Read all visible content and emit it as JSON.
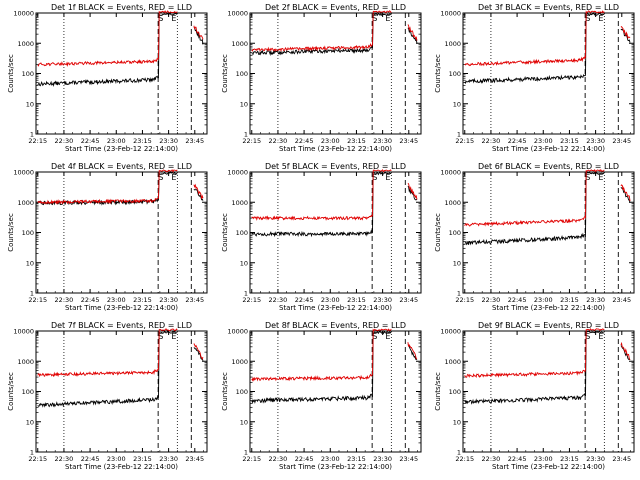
{
  "figure": {
    "title_template": "Det {n}f BLACK = Events, RED = LLD",
    "ylabel": "Counts/sec",
    "xlabel": "Start Time (23-Feb-12 22:14:00)",
    "x_ticks": [
      "22:15",
      "22:30",
      "22:45",
      "23:00",
      "23:15",
      "23:30",
      "23:45"
    ],
    "y_ticks": [
      "1",
      "10",
      "100",
      "1000",
      "10000"
    ],
    "markers": {
      "start": "S",
      "end": "E"
    },
    "colors": {
      "events": "#000000",
      "lld": "#e00000"
    }
  },
  "chart_data": [
    {
      "type": "line",
      "title": "Det 1f BLACK = Events, RED = LLD",
      "detector": "1",
      "events_level": 45,
      "lld_level": 200,
      "events_drift": 0.15,
      "lld_drift": 0.1,
      "ylim": [
        1,
        10000
      ],
      "y_scale": "log",
      "xlim": [
        "22:14",
        "23:52"
      ],
      "xlabel": "Start Time (23-Feb-12 22:14:00)",
      "ylabel": "Counts/sec",
      "series": [
        {
          "name": "BLACK = Events",
          "color": "#000000"
        },
        {
          "name": "RED = LLD",
          "color": "#e00000"
        }
      ]
    },
    {
      "type": "line",
      "title": "Det 2f BLACK = Events, RED = LLD",
      "detector": "2",
      "events_level": 480,
      "lld_level": 600,
      "events_drift": 0.1,
      "lld_drift": 0.1,
      "ylim": [
        1,
        10000
      ],
      "y_scale": "log",
      "xlim": [
        "22:14",
        "23:52"
      ],
      "xlabel": "Start Time (23-Feb-12 22:14:00)",
      "ylabel": "Counts/sec",
      "series": [
        {
          "name": "BLACK = Events",
          "color": "#000000"
        },
        {
          "name": "RED = LLD",
          "color": "#e00000"
        }
      ]
    },
    {
      "type": "line",
      "title": "Det 3f BLACK = Events, RED = LLD",
      "detector": "3",
      "events_level": 55,
      "lld_level": 200,
      "events_drift": 0.15,
      "lld_drift": 0.15,
      "ylim": [
        1,
        10000
      ],
      "y_scale": "log",
      "xlim": [
        "22:14",
        "23:52"
      ],
      "xlabel": "Start Time (23-Feb-12 22:14:00)",
      "ylabel": "Counts/sec",
      "series": [
        {
          "name": "BLACK = Events",
          "color": "#000000"
        },
        {
          "name": "RED = LLD",
          "color": "#e00000"
        }
      ]
    },
    {
      "type": "line",
      "title": "Det 4f BLACK = Events, RED = LLD",
      "detector": "4",
      "events_level": 950,
      "lld_level": 1000,
      "events_drift": 0.05,
      "lld_drift": 0.05,
      "ylim": [
        1,
        10000
      ],
      "y_scale": "log",
      "xlim": [
        "22:14",
        "23:52"
      ],
      "xlabel": "Start Time (23-Feb-12 22:14:00)",
      "ylabel": "Counts/sec",
      "series": [
        {
          "name": "BLACK = Events",
          "color": "#000000"
        },
        {
          "name": "RED = LLD",
          "color": "#e00000"
        }
      ]
    },
    {
      "type": "line",
      "title": "Det 5f BLACK = Events, RED = LLD",
      "detector": "5",
      "events_level": 90,
      "lld_level": 300,
      "events_drift": 0.0,
      "lld_drift": 0.0,
      "ylim": [
        1,
        10000
      ],
      "y_scale": "log",
      "xlim": [
        "22:14",
        "23:52"
      ],
      "xlabel": "Start Time (23-Feb-12 22:14:00)",
      "ylabel": "Counts/sec",
      "series": [
        {
          "name": "BLACK = Events",
          "color": "#000000"
        },
        {
          "name": "RED = LLD",
          "color": "#e00000"
        }
      ]
    },
    {
      "type": "line",
      "title": "Det 6f BLACK = Events, RED = LLD",
      "detector": "6",
      "events_level": 45,
      "lld_level": 180,
      "events_drift": 0.2,
      "lld_drift": 0.15,
      "ylim": [
        1,
        10000
      ],
      "y_scale": "log",
      "xlim": [
        "22:14",
        "23:52"
      ],
      "xlabel": "Start Time (23-Feb-12 22:14:00)",
      "ylabel": "Counts/sec",
      "series": [
        {
          "name": "BLACK = Events",
          "color": "#000000"
        },
        {
          "name": "RED = LLD",
          "color": "#e00000"
        }
      ]
    },
    {
      "type": "line",
      "title": "Det 7f BLACK = Events, RED = LLD",
      "detector": "7",
      "events_level": 35,
      "lld_level": 350,
      "events_drift": 0.2,
      "lld_drift": 0.1,
      "ylim": [
        1,
        10000
      ],
      "y_scale": "log",
      "xlim": [
        "22:14",
        "23:52"
      ],
      "xlabel": "Start Time (23-Feb-12 22:14:00)",
      "ylabel": "Counts/sec",
      "series": [
        {
          "name": "BLACK = Events",
          "color": "#000000"
        },
        {
          "name": "RED = LLD",
          "color": "#e00000"
        }
      ]
    },
    {
      "type": "line",
      "title": "Det 8f BLACK = Events, RED = LLD",
      "detector": "8",
      "events_level": 50,
      "lld_level": 260,
      "events_drift": 0.1,
      "lld_drift": 0.05,
      "ylim": [
        1,
        10000
      ],
      "y_scale": "log",
      "xlim": [
        "22:14",
        "23:52"
      ],
      "xlabel": "Start Time (23-Feb-12 22:14:00)",
      "ylabel": "Counts/sec",
      "series": [
        {
          "name": "BLACK = Events",
          "color": "#000000"
        },
        {
          "name": "RED = LLD",
          "color": "#e00000"
        }
      ]
    },
    {
      "type": "line",
      "title": "Det 9f BLACK = Events, RED = LLD",
      "detector": "9",
      "events_level": 45,
      "lld_level": 330,
      "events_drift": 0.15,
      "lld_drift": 0.1,
      "ylim": [
        1,
        10000
      ],
      "y_scale": "log",
      "xlim": [
        "22:14",
        "23:52"
      ],
      "xlabel": "Start Time (23-Feb-12 22:14:00)",
      "ylabel": "Counts/sec",
      "series": [
        {
          "name": "BLACK = Events",
          "color": "#000000"
        },
        {
          "name": "RED = LLD",
          "color": "#e00000"
        }
      ]
    }
  ]
}
